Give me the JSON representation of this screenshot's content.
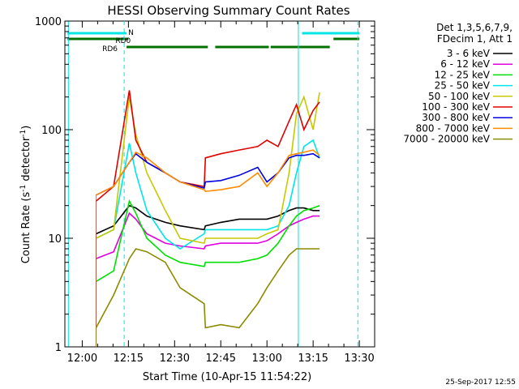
{
  "chart_data": {
    "type": "line",
    "title": "HESSI Observing Summary Count Rates",
    "xlabel": "Start Time (10-Apr-15 11:54:22)",
    "ylabel_main": "Count Rate (s",
    "ylabel_sup1": "-1",
    "ylabel_mid": " detector",
    "ylabel_sup2": "-1",
    "ylabel_end": ")",
    "y_scale": "log",
    "ylim": [
      1,
      1000
    ],
    "xlim": [
      11.906,
      13.583
    ],
    "x_ticks": [
      {
        "t": 12.0,
        "label": "12:00"
      },
      {
        "t": 12.25,
        "label": "12:15"
      },
      {
        "t": 12.5,
        "label": "12:30"
      },
      {
        "t": 12.75,
        "label": "12:45"
      },
      {
        "t": 13.0,
        "label": "13:00"
      },
      {
        "t": 13.25,
        "label": "13:15"
      },
      {
        "t": 13.5,
        "label": "13:30"
      }
    ],
    "y_ticks": [
      {
        "v": 1,
        "label": "1"
      },
      {
        "v": 10,
        "label": "10"
      },
      {
        "v": 100,
        "label": "100"
      },
      {
        "v": 1000,
        "label": "1000"
      }
    ],
    "legend_position": "right",
    "legend_header": [
      "Det 1,3,5,6,7,9,",
      "FDecim 1, Att 1"
    ],
    "footer_date": "25-Sep-2017 12:55",
    "flags": [
      {
        "label": "N",
        "color": "#00e5e5",
        "segments": [
          [
            11.92,
            12.24
          ],
          [
            13.19,
            13.5
          ]
        ],
        "level": 1
      },
      {
        "label": "RD0",
        "color": "#007000",
        "segments": [
          [
            11.92,
            12.25
          ],
          [
            13.36,
            13.5
          ]
        ],
        "level": 2
      },
      {
        "label": "RD6",
        "color": "#007000",
        "segments": [
          [
            12.24,
            12.68
          ],
          [
            12.72,
            13.01
          ],
          [
            13.02,
            13.34
          ]
        ],
        "level": 3
      }
    ],
    "vlines": [
      {
        "t": 11.925,
        "style": "solid",
        "color": "#00e5e5"
      },
      {
        "t": 12.227,
        "style": "dashed",
        "color": "#00e5e5"
      },
      {
        "t": 13.17,
        "style": "solid",
        "color": "#00e5e5"
      },
      {
        "t": 13.492,
        "style": "dashed",
        "color": "#00e5e5"
      }
    ],
    "x": [
      12.075,
      12.17,
      12.255,
      12.29,
      12.35,
      12.45,
      12.53,
      12.66,
      12.667,
      12.75,
      12.85,
      12.95,
      13.0,
      13.06,
      13.12,
      13.16,
      13.2,
      13.25,
      13.285
    ],
    "series": [
      {
        "name": "3 - 6 keV",
        "color": "#000000",
        "values": [
          11,
          13,
          20,
          19,
          16,
          14,
          13,
          12,
          13,
          14,
          15,
          15,
          15,
          16,
          18,
          19,
          19,
          18,
          18
        ]
      },
      {
        "name": "6 - 12 keV",
        "color": "#e000e0",
        "values": [
          6.5,
          7.5,
          17,
          15,
          11,
          9,
          8.5,
          8,
          8.5,
          9,
          9,
          9,
          9.5,
          11,
          13,
          14,
          15,
          16,
          16
        ]
      },
      {
        "name": "12 - 25 keV",
        "color": "#00e000",
        "values": [
          4,
          5,
          22,
          17,
          10,
          7,
          6,
          5.5,
          6,
          6,
          6,
          6.5,
          7,
          9,
          13,
          16,
          18,
          19,
          20
        ]
      },
      {
        "name": "25 - 50 keV",
        "color": "#00e5e5",
        "values": [
          10,
          12,
          75,
          40,
          18,
          10,
          8,
          11,
          12,
          12,
          12,
          12,
          12,
          13,
          20,
          40,
          70,
          80,
          55
        ]
      },
      {
        "name": "50 - 100 keV",
        "color": "#c8c800",
        "values": [
          10,
          12,
          200,
          90,
          40,
          18,
          10,
          9,
          10,
          10,
          10,
          10,
          11,
          12,
          40,
          140,
          200,
          100,
          220
        ]
      },
      {
        "name": "100 - 300 keV",
        "color": "#e00000",
        "values": [
          22,
          30,
          230,
          80,
          50,
          40,
          33,
          30,
          55,
          60,
          65,
          70,
          80,
          70,
          120,
          170,
          100,
          150,
          180
        ]
      },
      {
        "name": "300 - 800 keV",
        "color": "#0000e0",
        "values": [
          25,
          30,
          50,
          60,
          50,
          40,
          33,
          29,
          33,
          34,
          38,
          45,
          33,
          40,
          55,
          58,
          58,
          60,
          55
        ]
      },
      {
        "name": "800 - 7000 keV",
        "color": "#ff8c00",
        "values": [
          25,
          30,
          50,
          62,
          55,
          40,
          33,
          28,
          27,
          28,
          30,
          40,
          30,
          40,
          58,
          60,
          62,
          65,
          58
        ]
      },
      {
        "name": "7000 - 20000 keV",
        "color": "#8b8b00",
        "values": [
          1.5,
          3,
          6.5,
          8,
          7.5,
          6,
          3.5,
          2.5,
          1.5,
          1.6,
          1.5,
          2.5,
          3.5,
          5,
          7,
          8,
          8,
          8,
          8
        ]
      }
    ]
  }
}
